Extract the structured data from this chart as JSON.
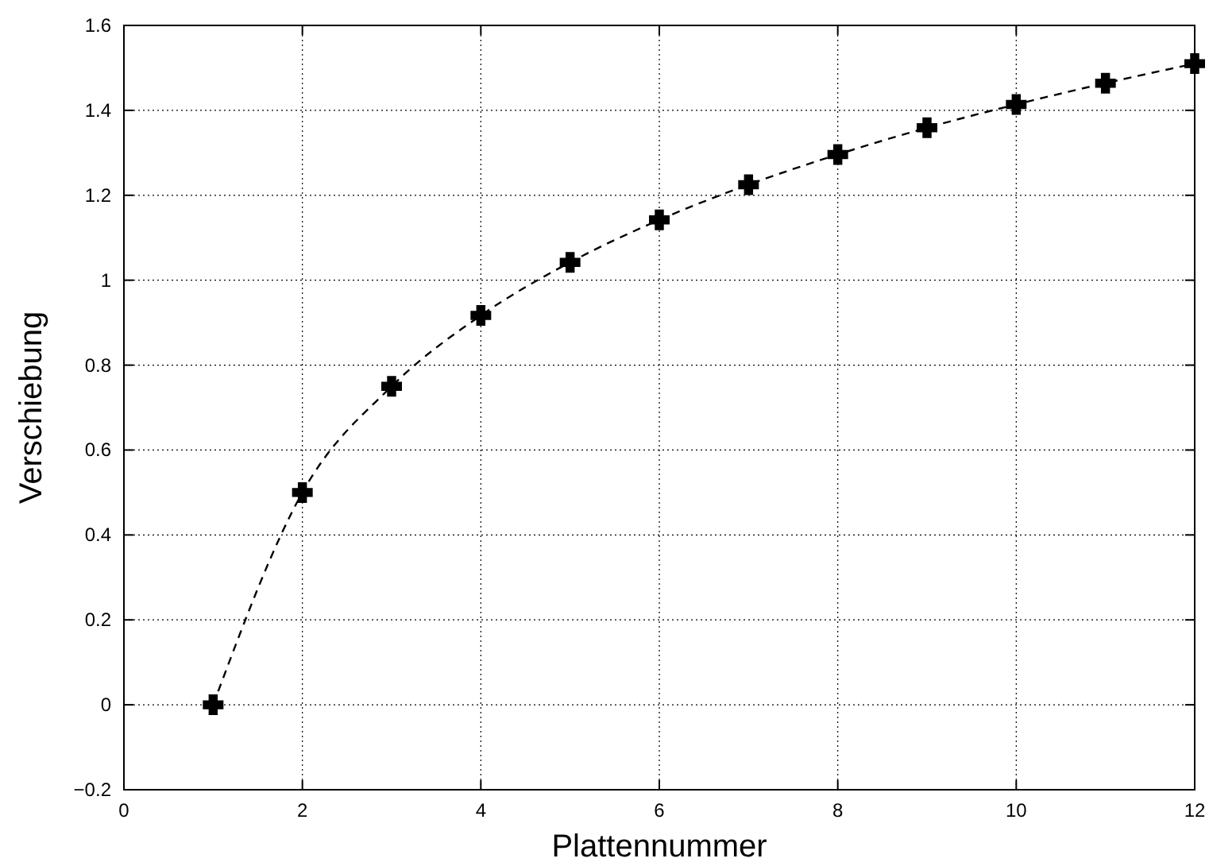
{
  "chart_data": {
    "type": "line",
    "xlabel": "Plattennummer",
    "ylabel": "Verschiebung",
    "x": [
      1,
      2,
      3,
      4,
      5,
      6,
      7,
      8,
      9,
      10,
      11,
      12
    ],
    "series": [
      {
        "color": "#000000",
        "values": [
          0,
          0.5,
          0.75,
          0.917,
          1.042,
          1.142,
          1.225,
          1.296,
          1.359,
          1.414,
          1.464,
          1.51
        ]
      }
    ],
    "xlim": [
      0,
      12
    ],
    "xticks": [
      0,
      2,
      4,
      6,
      8,
      10,
      12
    ],
    "ylim": [
      -0.2,
      1.6
    ],
    "yticks": [
      {
        "value": -0.2,
        "label": "−0.2"
      },
      0,
      0.2,
      0.4,
      0.6,
      0.8,
      1,
      1.2,
      1.4,
      1.6
    ],
    "grid": true,
    "marker": "cross",
    "line_style": "dashed"
  }
}
